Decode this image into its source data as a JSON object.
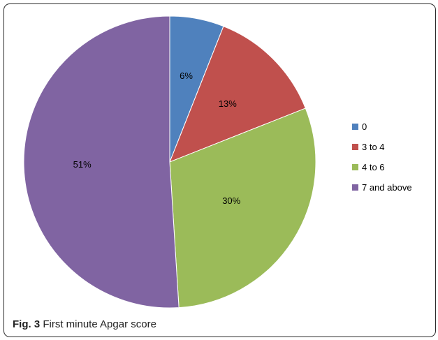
{
  "caption": {
    "prefix": "Fig. 3",
    "text": "First minute Apgar score"
  },
  "chart_data": {
    "type": "pie",
    "categories": [
      "0",
      "3 to 4",
      "4 to 6",
      "7 and above"
    ],
    "values": [
      6,
      13,
      30,
      51
    ],
    "labels": [
      "6%",
      "13%",
      "30%",
      "51%"
    ],
    "colors": [
      "#4f81bd",
      "#c0504d",
      "#9bbb59",
      "#8064a2"
    ],
    "legend": "right",
    "start_angle": "12 o'clock, clockwise"
  }
}
